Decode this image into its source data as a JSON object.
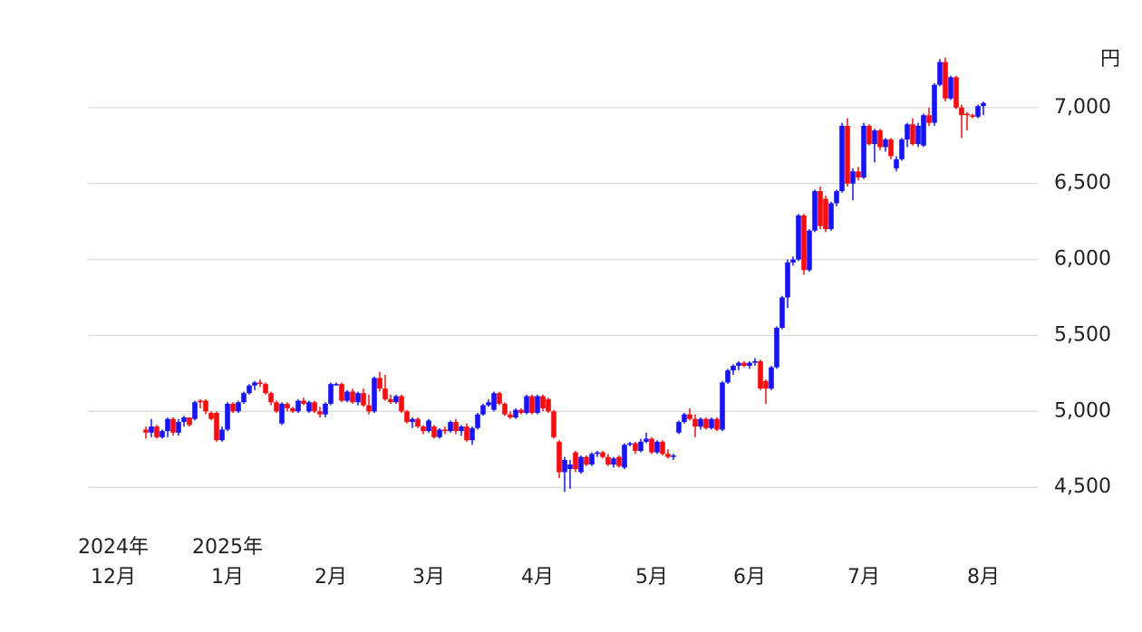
{
  "chart_data": {
    "type": "candlestick",
    "unit_label": "円",
    "up_color": "#1414ff",
    "down_color": "#ff0a0a",
    "grid": true,
    "ylim": [
      4370,
      7470
    ],
    "yticks": [
      {
        "value": 4500,
        "label": "4,500"
      },
      {
        "value": 5000,
        "label": "5,000"
      },
      {
        "value": 5500,
        "label": "5,500"
      },
      {
        "value": 6000,
        "label": "6,000"
      },
      {
        "value": 6500,
        "label": "6,500"
      },
      {
        "value": 7000,
        "label": "7,000"
      }
    ],
    "categories": [
      "2024年\n12月",
      null,
      null,
      null,
      null,
      null,
      null,
      null,
      null,
      null,
      null,
      null,
      null,
      null,
      null,
      null,
      null,
      null,
      null,
      null,
      null,
      "2025年\n1月",
      null,
      null,
      null,
      null,
      null,
      null,
      null,
      null,
      null,
      null,
      null,
      null,
      null,
      null,
      null,
      null,
      null,
      null,
      "2月",
      null,
      null,
      null,
      null,
      null,
      null,
      null,
      null,
      null,
      null,
      null,
      null,
      null,
      null,
      null,
      null,
      null,
      "3月",
      null,
      null,
      null,
      null,
      null,
      null,
      null,
      null,
      null,
      null,
      null,
      null,
      null,
      null,
      null,
      null,
      null,
      null,
      null,
      "4月",
      null,
      null,
      null,
      null,
      null,
      null,
      null,
      null,
      null,
      null,
      null,
      null,
      null,
      null,
      null,
      null,
      null,
      null,
      null,
      null,
      "5月",
      null,
      null,
      null,
      null,
      null,
      null,
      null,
      null,
      null,
      null,
      null,
      null,
      null,
      null,
      null,
      null,
      null,
      "6月",
      null,
      null,
      null,
      null,
      null,
      null,
      null,
      null,
      null,
      null,
      null,
      null,
      null,
      null,
      null,
      null,
      null,
      null,
      null,
      null,
      "7月",
      null,
      null,
      null,
      null,
      null,
      null,
      null,
      null,
      null,
      null,
      null,
      null,
      null,
      null,
      null,
      null,
      null,
      null,
      null,
      null,
      null,
      "8月"
    ],
    "candles": [
      null,
      null,
      null,
      null,
      null,
      null,
      [
        4880,
        4900,
        4820,
        4860
      ],
      [
        4860,
        4950,
        4830,
        4900
      ],
      [
        4900,
        4910,
        4820,
        4830
      ],
      [
        4830,
        4880,
        4820,
        4870
      ],
      [
        4870,
        4960,
        4830,
        4950
      ],
      [
        4950,
        4960,
        4840,
        4860
      ],
      [
        4860,
        4950,
        4840,
        4930
      ],
      [
        4930,
        4970,
        4900,
        4960
      ],
      [
        4960,
        4960,
        4900,
        4910
      ],
      [
        4950,
        5070,
        4940,
        5060
      ],
      [
        5070,
        5080,
        5020,
        5060
      ],
      [
        5070,
        5080,
        4980,
        5000
      ],
      [
        4990,
        5000,
        4940,
        4950
      ],
      [
        4990,
        5000,
        4800,
        4810
      ],
      [
        4810,
        4900,
        4800,
        4880
      ],
      [
        4880,
        5060,
        4870,
        5050
      ],
      [
        5050,
        5060,
        4990,
        5000
      ],
      [
        5000,
        5070,
        4990,
        5060
      ],
      [
        5060,
        5130,
        5050,
        5120
      ],
      [
        5120,
        5180,
        5110,
        5170
      ],
      [
        5170,
        5200,
        5140,
        5190
      ],
      [
        5190,
        5210,
        5160,
        5180
      ],
      [
        5180,
        5190,
        5110,
        5120
      ],
      [
        5120,
        5130,
        5040,
        5060
      ],
      [
        5060,
        5070,
        4990,
        5000
      ],
      [
        4920,
        5060,
        4910,
        5050
      ],
      [
        5050,
        5060,
        5000,
        5020
      ],
      [
        5020,
        5030,
        4990,
        5000
      ],
      [
        5000,
        5080,
        4990,
        5070
      ],
      [
        5070,
        5090,
        5040,
        5050
      ],
      [
        5000,
        5070,
        4990,
        5060
      ],
      [
        5060,
        5070,
        4990,
        5000
      ],
      [
        5000,
        5030,
        4960,
        4980
      ],
      [
        4980,
        5060,
        4960,
        5050
      ],
      [
        5050,
        5190,
        5040,
        5180
      ],
      [
        5180,
        5190,
        5170,
        5180
      ],
      [
        5180,
        5190,
        5060,
        5070
      ],
      [
        5070,
        5140,
        5060,
        5130
      ],
      [
        5130,
        5150,
        5050,
        5060
      ],
      [
        5060,
        5130,
        5040,
        5120
      ],
      [
        5120,
        5150,
        5030,
        5040
      ],
      [
        5040,
        5110,
        4980,
        5000
      ],
      [
        5000,
        5230,
        4990,
        5220
      ],
      [
        5220,
        5260,
        5130,
        5150
      ],
      [
        5150,
        5240,
        5070,
        5080
      ],
      [
        5080,
        5110,
        5050,
        5060
      ],
      [
        5060,
        5110,
        5050,
        5100
      ],
      [
        5100,
        5110,
        4990,
        5000
      ],
      [
        5000,
        5010,
        4920,
        4930
      ],
      [
        4930,
        4960,
        4890,
        4950
      ],
      [
        4950,
        4960,
        4890,
        4900
      ],
      [
        4900,
        4910,
        4850,
        4870
      ],
      [
        4870,
        4950,
        4860,
        4940
      ],
      [
        4900,
        4910,
        4820,
        4830
      ],
      [
        4830,
        4890,
        4820,
        4880
      ],
      [
        4880,
        4900,
        4850,
        4870
      ],
      [
        4870,
        4940,
        4860,
        4930
      ],
      [
        4930,
        4950,
        4850,
        4870
      ],
      [
        4870,
        4910,
        4840,
        4900
      ],
      [
        4900,
        4920,
        4800,
        4810
      ],
      [
        4810,
        4900,
        4780,
        4890
      ],
      [
        4890,
        4990,
        4880,
        4980
      ],
      [
        4980,
        5050,
        4970,
        5040
      ],
      [
        5040,
        5080,
        5030,
        5060
      ],
      [
        5010,
        5130,
        5000,
        5120
      ],
      [
        5120,
        5130,
        5040,
        5050
      ],
      [
        5050,
        5060,
        4970,
        4980
      ],
      [
        4980,
        5000,
        4950,
        4960
      ],
      [
        4960,
        5020,
        4950,
        5010
      ],
      [
        5010,
        5020,
        4980,
        4990
      ],
      [
        4990,
        5110,
        4980,
        5100
      ],
      [
        5100,
        5110,
        4980,
        4990
      ],
      [
        4990,
        5110,
        4980,
        5100
      ],
      [
        5100,
        5110,
        5000,
        5020
      ],
      [
        5080,
        5090,
        4990,
        5000
      ],
      [
        5000,
        5010,
        4820,
        4830
      ],
      [
        4800,
        4810,
        4560,
        4600
      ],
      [
        4600,
        4700,
        4470,
        4680
      ],
      [
        4620,
        4680,
        4490,
        4650
      ],
      [
        4730,
        4740,
        4600,
        4620
      ],
      [
        4600,
        4710,
        4590,
        4700
      ],
      [
        4700,
        4710,
        4640,
        4650
      ],
      [
        4650,
        4730,
        4640,
        4720
      ],
      [
        4720,
        4740,
        4700,
        4730
      ],
      [
        4730,
        4740,
        4690,
        4700
      ],
      [
        4700,
        4720,
        4640,
        4650
      ],
      [
        4650,
        4700,
        4630,
        4690
      ],
      [
        4700,
        4710,
        4630,
        4640
      ],
      [
        4630,
        4790,
        4620,
        4780
      ],
      [
        4780,
        4800,
        4770,
        4790
      ],
      [
        4790,
        4800,
        4720,
        4740
      ],
      [
        4740,
        4820,
        4730,
        4800
      ],
      [
        4800,
        4860,
        4790,
        4820
      ],
      [
        4820,
        4830,
        4720,
        4730
      ],
      [
        4730,
        4810,
        4720,
        4800
      ],
      [
        4800,
        4810,
        4710,
        4720
      ],
      [
        4720,
        4750,
        4690,
        4700
      ],
      [
        4700,
        4720,
        4680,
        4710
      ],
      [
        4860,
        4940,
        4850,
        4930
      ],
      [
        4930,
        4990,
        4920,
        4980
      ],
      [
        4980,
        5020,
        4940,
        4950
      ],
      [
        4950,
        4980,
        4830,
        4900
      ],
      [
        4900,
        4960,
        4880,
        4950
      ],
      [
        4950,
        4960,
        4880,
        4890
      ],
      [
        4890,
        4960,
        4880,
        4950
      ],
      [
        4950,
        4960,
        4870,
        4880
      ],
      [
        4880,
        5200,
        4870,
        5190
      ],
      [
        5190,
        5280,
        5180,
        5270
      ],
      [
        5270,
        5310,
        5240,
        5300
      ],
      [
        5300,
        5330,
        5270,
        5320
      ],
      [
        5320,
        5330,
        5290,
        5300
      ],
      [
        5300,
        5330,
        5280,
        5320
      ],
      [
        5320,
        5350,
        5300,
        5330
      ],
      [
        5330,
        5340,
        5140,
        5150
      ],
      [
        5200,
        5210,
        5050,
        5150
      ],
      [
        5150,
        5300,
        5140,
        5290
      ],
      [
        5290,
        5560,
        5280,
        5550
      ],
      [
        5550,
        5760,
        5540,
        5750
      ],
      [
        5750,
        6000,
        5680,
        5980
      ],
      [
        5980,
        6020,
        5960,
        6000
      ],
      [
        6000,
        6300,
        5990,
        6290
      ],
      [
        6290,
        6300,
        5900,
        5930
      ],
      [
        5930,
        6200,
        5920,
        6190
      ],
      [
        6190,
        6460,
        6180,
        6450
      ],
      [
        6450,
        6480,
        6200,
        6220
      ],
      [
        6400,
        6420,
        6180,
        6200
      ],
      [
        6200,
        6380,
        6190,
        6370
      ],
      [
        6370,
        6460,
        6350,
        6450
      ],
      [
        6450,
        6900,
        6440,
        6880
      ],
      [
        6880,
        6930,
        6480,
        6500
      ],
      [
        6500,
        6600,
        6390,
        6580
      ],
      [
        6580,
        6610,
        6520,
        6540
      ],
      [
        6540,
        6900,
        6530,
        6880
      ],
      [
        6880,
        6890,
        6750,
        6760
      ],
      [
        6760,
        6860,
        6640,
        6850
      ],
      [
        6850,
        6860,
        6720,
        6740
      ],
      [
        6740,
        6800,
        6710,
        6790
      ],
      [
        6790,
        6800,
        6660,
        6680
      ],
      [
        6600,
        6680,
        6580,
        6660
      ],
      [
        6660,
        6800,
        6650,
        6790
      ],
      [
        6790,
        6900,
        6740,
        6890
      ],
      [
        6890,
        6930,
        6750,
        6760
      ],
      [
        6760,
        6900,
        6740,
        6880
      ],
      [
        6750,
        6960,
        6740,
        6950
      ],
      [
        6950,
        7000,
        6880,
        6900
      ],
      [
        6900,
        7160,
        6880,
        7150
      ],
      [
        7150,
        7320,
        7140,
        7300
      ],
      [
        7300,
        7330,
        7040,
        7060
      ],
      [
        7060,
        7210,
        7050,
        7200
      ],
      [
        7200,
        7210,
        6990,
        7000
      ],
      [
        7000,
        7020,
        6800,
        6950
      ],
      [
        6960,
        6970,
        6850,
        6950
      ],
      [
        6950,
        6960,
        6930,
        6940
      ],
      [
        6940,
        7020,
        6930,
        7010
      ],
      [
        7010,
        7040,
        6950,
        7030
      ]
    ]
  }
}
